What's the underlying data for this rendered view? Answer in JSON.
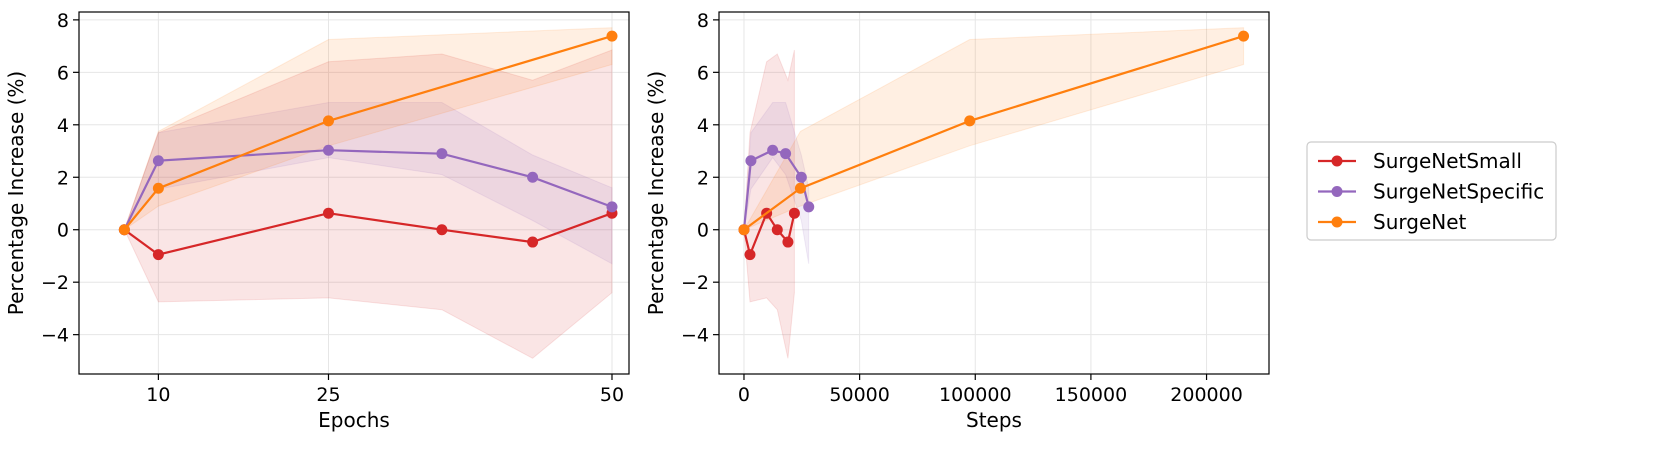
{
  "chart_data": [
    {
      "type": "line",
      "xlabel": "Epochs",
      "ylabel": "Percentage Increase (%)",
      "xticks": [
        10,
        25,
        50
      ],
      "yticks": [
        -4,
        -2,
        0,
        2,
        4,
        6,
        8
      ],
      "xlim": [
        3,
        51.5
      ],
      "ylim": [
        -5.5,
        8.3
      ],
      "grid": true,
      "series": [
        {
          "name": "SurgeNetSmall",
          "color": "#d62728",
          "x": [
            7,
            10,
            25,
            35,
            43,
            50
          ],
          "y": [
            0,
            -0.95,
            0.63,
            0,
            -0.47,
            0.63
          ],
          "lower": [
            0,
            -2.75,
            -2.6,
            -3.05,
            -4.9,
            -2.4
          ],
          "upper": [
            0,
            3.7,
            6.4,
            6.7,
            5.7,
            6.85
          ]
        },
        {
          "name": "SurgeNetSpecific",
          "color": "#9467bd",
          "x": [
            7,
            10,
            25,
            35,
            43,
            50
          ],
          "y": [
            0,
            2.63,
            3.03,
            2.9,
            2.0,
            0.87
          ],
          "lower": [
            0,
            1.55,
            2.75,
            2.1,
            0.35,
            -1.3
          ],
          "upper": [
            0,
            3.7,
            4.85,
            4.85,
            2.85,
            1.6
          ]
        },
        {
          "name": "SurgeNet",
          "color": "#ff7f0e",
          "x": [
            7,
            10,
            25,
            50
          ],
          "y": [
            0,
            1.58,
            4.15,
            7.38
          ],
          "lower": [
            0,
            0.9,
            3.2,
            6.3
          ],
          "upper": [
            0,
            3.75,
            7.25,
            7.7
          ]
        }
      ]
    },
    {
      "type": "line",
      "xlabel": "Steps",
      "ylabel": "Percentage Increase (%)",
      "xticks": [
        0,
        50000,
        100000,
        150000,
        200000
      ],
      "yticks": [
        -4,
        -2,
        0,
        2,
        4,
        6,
        8
      ],
      "xlim": [
        -10800,
        227000
      ],
      "ylim": [
        -5.5,
        8.3
      ],
      "grid": true,
      "series": [
        {
          "name": "SurgeNetSmall",
          "color": "#d62728",
          "x": [
            0,
            2600,
            9800,
            14400,
            19000,
            21800
          ],
          "y": [
            0,
            -0.95,
            0.63,
            0,
            -0.47,
            0.63
          ],
          "lower": [
            0,
            -2.75,
            -2.6,
            -3.05,
            -4.9,
            -2.4
          ],
          "upper": [
            0,
            3.7,
            6.4,
            6.7,
            5.7,
            6.85
          ]
        },
        {
          "name": "SurgeNetSpecific",
          "color": "#9467bd",
          "x": [
            0,
            3000,
            12400,
            18000,
            24800,
            28000
          ],
          "y": [
            0,
            2.63,
            3.03,
            2.9,
            2.0,
            0.87
          ],
          "lower": [
            0,
            1.55,
            2.75,
            2.1,
            0.35,
            -1.3
          ],
          "upper": [
            0,
            3.7,
            4.85,
            4.85,
            2.85,
            1.6
          ]
        },
        {
          "name": "SurgeNet",
          "color": "#ff7f0e",
          "x": [
            0,
            24400,
            97600,
            216000
          ],
          "y": [
            0,
            1.58,
            4.15,
            7.38
          ],
          "lower": [
            0,
            0.9,
            3.2,
            6.3
          ],
          "upper": [
            0,
            3.75,
            7.25,
            7.7
          ]
        }
      ]
    }
  ],
  "legend": {
    "placement": "right",
    "entries": [
      "SurgeNetSmall",
      "SurgeNetSpecific",
      "SurgeNet"
    ]
  }
}
